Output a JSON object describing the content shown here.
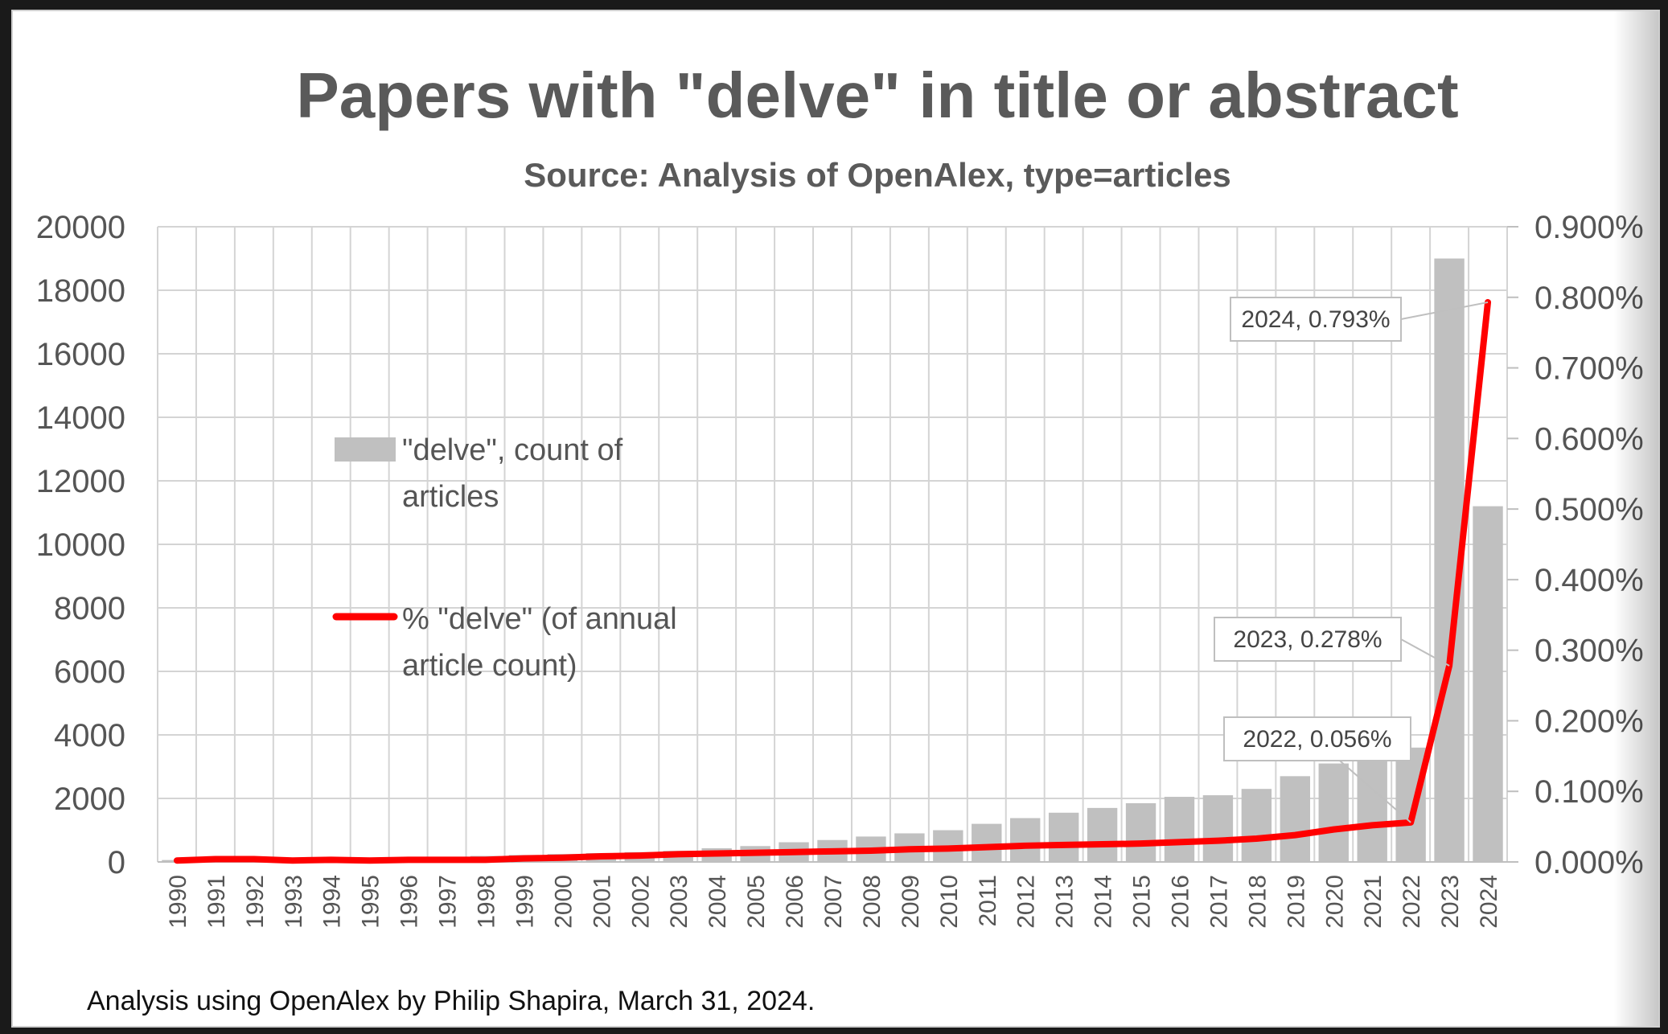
{
  "chart_data": {
    "type": "bar",
    "title": "Papers with \"delve\" in title or abstract",
    "subtitle": "Source: Analysis of OpenAlex, type=articles",
    "categories": [
      "1990",
      "1991",
      "1992",
      "1993",
      "1994",
      "1995",
      "1996",
      "1997",
      "1998",
      "1999",
      "2000",
      "2001",
      "2002",
      "2003",
      "2004",
      "2005",
      "2006",
      "2007",
      "2008",
      "2009",
      "2010",
      "2011",
      "2012",
      "2013",
      "2014",
      "2015",
      "2016",
      "2017",
      "2018",
      "2019",
      "2020",
      "2021",
      "2022",
      "2023",
      "2024"
    ],
    "series": [
      {
        "name": "\"delve\", count of articles",
        "type": "bar",
        "axis": "left",
        "color": "#c0c0c0",
        "values": [
          60,
          80,
          90,
          100,
          110,
          120,
          140,
          160,
          190,
          220,
          250,
          280,
          310,
          350,
          430,
          500,
          620,
          690,
          800,
          900,
          1000,
          1200,
          1380,
          1550,
          1700,
          1850,
          2050,
          2100,
          2300,
          2700,
          3100,
          3200,
          3600,
          19000,
          11200
        ]
      },
      {
        "name": "% \"delve\" (of annual article count)",
        "type": "line",
        "axis": "right",
        "unit": "%",
        "color": "#ff0000",
        "values": [
          0.002,
          0.004,
          0.004,
          0.002,
          0.003,
          0.002,
          0.003,
          0.003,
          0.003,
          0.005,
          0.006,
          0.008,
          0.009,
          0.011,
          0.012,
          0.013,
          0.014,
          0.015,
          0.016,
          0.018,
          0.019,
          0.021,
          0.023,
          0.024,
          0.025,
          0.026,
          0.028,
          0.03,
          0.033,
          0.038,
          0.046,
          0.052,
          0.056,
          0.278,
          0.793
        ]
      }
    ],
    "y_left": {
      "min": 0,
      "max": 20000,
      "ticks": [
        0,
        2000,
        4000,
        6000,
        8000,
        10000,
        12000,
        14000,
        16000,
        18000,
        20000
      ],
      "tick_labels": [
        "0",
        "2000",
        "4000",
        "6000",
        "8000",
        "10000",
        "12000",
        "14000",
        "16000",
        "18000",
        "20000"
      ]
    },
    "y_right": {
      "min": 0,
      "max": 0.9,
      "ticks": [
        0,
        0.1,
        0.2,
        0.3,
        0.4,
        0.5,
        0.6,
        0.7,
        0.8,
        0.9
      ],
      "tick_labels": [
        "0.000%",
        "0.100%",
        "0.200%",
        "0.300%",
        "0.400%",
        "0.500%",
        "0.600%",
        "0.700%",
        "0.800%",
        "0.900%"
      ]
    },
    "grid": true,
    "legend": {
      "placement": "inside-left",
      "bar_label_lines": [
        "\"delve\", count of",
        "articles"
      ],
      "line_label_lines": [
        "% \"delve\" (of annual",
        "article count)"
      ]
    },
    "annotations": [
      {
        "text": "2024, 0.793%",
        "category": "2024",
        "series": 1
      },
      {
        "text": "2023, 0.278%",
        "category": "2023",
        "series": 1
      },
      {
        "text": "2022, 0.056%",
        "category": "2022",
        "series": 1
      }
    ]
  },
  "footer": "Analysis using OpenAlex by Philip Shapira, March 31, 2024."
}
